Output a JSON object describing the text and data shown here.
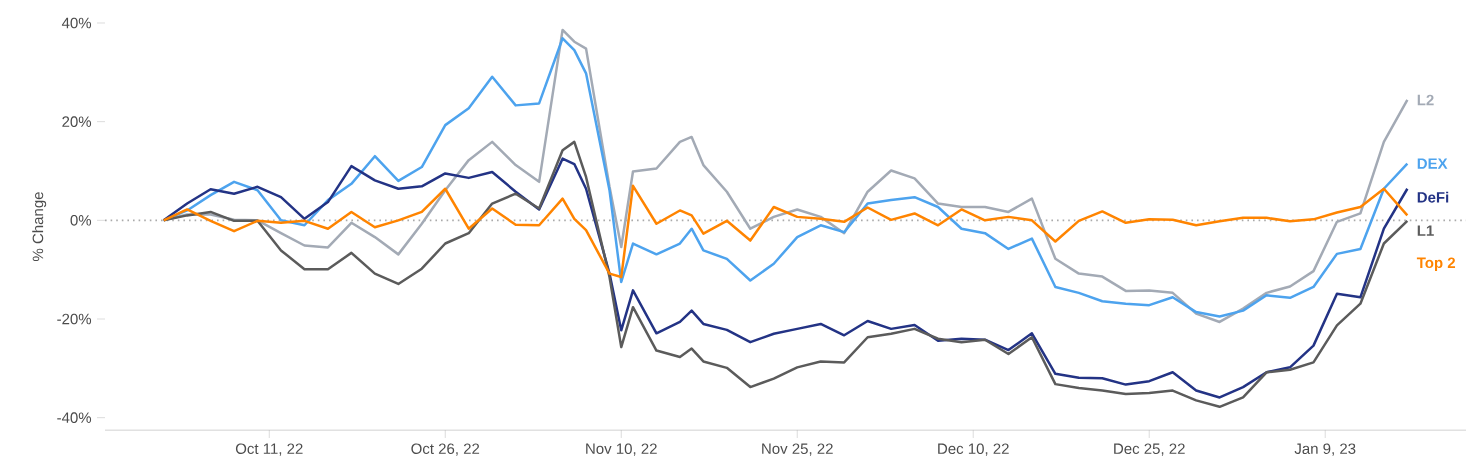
{
  "chart_data": {
    "type": "line",
    "ylabel": "% Change",
    "x": [
      "2022-10-02",
      "2022-10-04",
      "2022-10-06",
      "2022-10-08",
      "2022-10-10",
      "2022-10-12",
      "2022-10-14",
      "2022-10-16",
      "2022-10-18",
      "2022-10-20",
      "2022-10-22",
      "2022-10-24",
      "2022-10-26",
      "2022-10-28",
      "2022-10-30",
      "2022-11-01",
      "2022-11-03",
      "2022-11-05",
      "2022-11-06",
      "2022-11-07",
      "2022-11-09",
      "2022-11-10",
      "2022-11-11",
      "2022-11-13",
      "2022-11-15",
      "2022-11-16",
      "2022-11-17",
      "2022-11-19",
      "2022-11-21",
      "2022-11-23",
      "2022-11-25",
      "2022-11-27",
      "2022-11-29",
      "2022-12-01",
      "2022-12-03",
      "2022-12-05",
      "2022-12-07",
      "2022-12-09",
      "2022-12-11",
      "2022-12-13",
      "2022-12-15",
      "2022-12-17",
      "2022-12-19",
      "2022-12-21",
      "2022-12-23",
      "2022-12-25",
      "2022-12-27",
      "2022-12-29",
      "2022-12-31",
      "2023-01-02",
      "2023-01-04",
      "2023-01-06",
      "2023-01-08",
      "2023-01-10",
      "2023-01-12",
      "2023-01-14",
      "2023-01-16"
    ],
    "series": [
      {
        "name": "L2",
        "color": "#a3aab5",
        "values": [
          0,
          1.2,
          1.2,
          0.1,
          0,
          -2.6,
          -5.1,
          -5.5,
          -0.5,
          -3.4,
          -6.9,
          -0.7,
          6.1,
          12.2,
          15.9,
          11.2,
          7.8,
          38.6,
          36.2,
          34.8,
          6.8,
          -5.4,
          9.9,
          10.5,
          15.9,
          16.9,
          11.2,
          5.8,
          -1.7,
          0.7,
          2.2,
          0.7,
          -2.6,
          5.8,
          10.1,
          8.5,
          3.4,
          2.7,
          2.7,
          1.7,
          4.4,
          -7.8,
          -10.8,
          -11.4,
          -14.3,
          -14.2,
          -14.7,
          -18.9,
          -20.6,
          -17.9,
          -14.7,
          -13.4,
          -10.3,
          -0.3,
          1.4,
          15.9,
          24.4
        ]
      },
      {
        "name": "DEX",
        "color": "#4da3ee",
        "values": [
          0,
          2.0,
          5.1,
          7.8,
          6.1,
          0,
          -1.0,
          4.1,
          7.4,
          13.0,
          8.0,
          10.8,
          19.3,
          22.7,
          29.1,
          23.3,
          23.7,
          36.9,
          34.5,
          29.8,
          6.1,
          -12.5,
          -4.7,
          -6.9,
          -4.7,
          -1.7,
          -6.1,
          -7.8,
          -12.2,
          -8.8,
          -3.4,
          -1.0,
          -2.4,
          3.4,
          4.1,
          4.7,
          2.7,
          -1.7,
          -2.6,
          -5.8,
          -3.7,
          -13.5,
          -14.7,
          -16.4,
          -16.9,
          -17.2,
          -15.6,
          -18.6,
          -19.5,
          -18.3,
          -15.2,
          -15.7,
          -13.5,
          -6.8,
          -5.8,
          6.4,
          11.5
        ]
      },
      {
        "name": "DeFi",
        "color": "#233385",
        "values": [
          0,
          3.4,
          6.3,
          5.4,
          6.8,
          4.7,
          0.3,
          3.7,
          11.0,
          8.1,
          6.4,
          6.9,
          9.5,
          8.6,
          9.8,
          5.8,
          2.2,
          12.5,
          11.4,
          6.4,
          -10.8,
          -22.3,
          -14.2,
          -22.9,
          -20.6,
          -18.3,
          -21.0,
          -22.2,
          -24.7,
          -23.0,
          -22.0,
          -21.0,
          -23.3,
          -20.4,
          -22.0,
          -21.2,
          -24.4,
          -24.0,
          -24.2,
          -26.3,
          -22.9,
          -31.1,
          -31.9,
          -32.0,
          -33.3,
          -32.6,
          -30.8,
          -34.5,
          -35.9,
          -33.8,
          -30.8,
          -29.8,
          -25.4,
          -14.9,
          -15.6,
          -1.7,
          6.4
        ]
      },
      {
        "name": "L1",
        "color": "#5b5b5b",
        "values": [
          0,
          1.0,
          1.7,
          -0.1,
          -0.1,
          -6.1,
          -9.9,
          -9.9,
          -6.6,
          -10.8,
          -12.9,
          -9.8,
          -4.7,
          -2.6,
          3.4,
          5.4,
          2.4,
          14.2,
          15.9,
          8.8,
          -11.5,
          -25.7,
          -17.6,
          -26.4,
          -27.7,
          -26.0,
          -28.6,
          -29.9,
          -33.8,
          -32.1,
          -29.8,
          -28.6,
          -28.8,
          -23.7,
          -23.0,
          -22.0,
          -24.0,
          -24.7,
          -24.2,
          -27.1,
          -23.7,
          -33.2,
          -34.0,
          -34.5,
          -35.2,
          -35.0,
          -34.5,
          -36.5,
          -37.8,
          -35.9,
          -30.8,
          -30.3,
          -28.8,
          -21.3,
          -16.9,
          -4.7,
          -0.1
        ]
      },
      {
        "name": "Top 2",
        "color": "#ff8400",
        "values": [
          0,
          2.2,
          -0.1,
          -2.2,
          -0.1,
          -0.5,
          -0.1,
          -1.7,
          1.7,
          -1.4,
          0,
          1.7,
          6.4,
          -1.7,
          2.4,
          -0.9,
          -1.0,
          4.4,
          0.3,
          -2.0,
          -10.8,
          -11.5,
          7.0,
          -0.7,
          2.0,
          1.0,
          -2.7,
          -0.1,
          -4.1,
          2.7,
          0.7,
          0.3,
          -0.3,
          2.6,
          0.1,
          1.4,
          -1.0,
          2.2,
          0,
          0.7,
          0,
          -4.3,
          -0.1,
          1.8,
          -0.5,
          0.2,
          0.1,
          -1.0,
          -0.2,
          0.5,
          0.5,
          -0.2,
          0.2,
          1.6,
          2.7,
          6.4,
          1.0
        ]
      }
    ],
    "xlim": [
      "2022-09-27",
      "2023-01-21"
    ],
    "xticks": [
      {
        "value": "2022-10-11",
        "label": "Oct 11, 22"
      },
      {
        "value": "2022-10-26",
        "label": "Oct 26, 22"
      },
      {
        "value": "2022-11-10",
        "label": "Nov 10, 22"
      },
      {
        "value": "2022-11-25",
        "label": "Nov 25, 22"
      },
      {
        "value": "2022-12-10",
        "label": "Dec 10, 22"
      },
      {
        "value": "2022-12-25",
        "label": "Dec 25, 22"
      },
      {
        "value": "2023-01-09",
        "label": "Jan 9, 23"
      }
    ],
    "ylim": [
      -42.5,
      40
    ],
    "yticks": [
      {
        "value": -40,
        "label": "-40%"
      },
      {
        "value": -20,
        "label": "-20%"
      },
      {
        "value": 0,
        "label": "0%"
      },
      {
        "value": 20,
        "label": "20%"
      },
      {
        "value": 40,
        "label": "40%"
      }
    ],
    "ref_lines": [
      {
        "axis": "y",
        "value": 0,
        "color": "#aaaaaa",
        "line_style": "dotted"
      }
    ],
    "legend": false
  }
}
